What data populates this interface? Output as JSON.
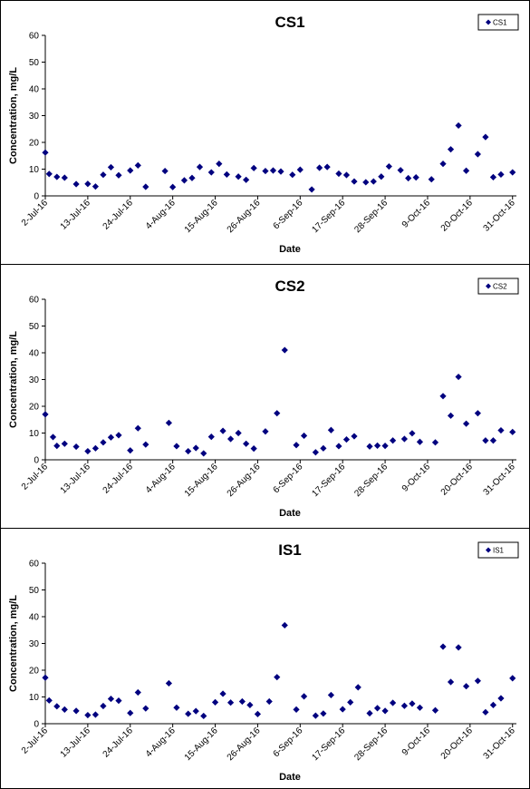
{
  "chart_data": [
    {
      "type": "scatter",
      "title": "CS1",
      "xlabel": "Date",
      "ylabel": "Concentration, mg/L",
      "ylim": [
        0,
        60
      ],
      "yticks": [
        "0",
        "10",
        "20",
        "30",
        "40",
        "50",
        "60"
      ],
      "xlim": [
        "2016-07-02",
        "2016-11-01"
      ],
      "xticks": [
        "2-Jul-16",
        "13-Jul-16",
        "24-Jul-16",
        "4-Aug-16",
        "15-Aug-16",
        "26-Aug-16",
        "6-Sep-16",
        "17-Sep-16",
        "28-Sep-16",
        "9-Oct-16",
        "20-Oct-16",
        "31-Oct-16"
      ],
      "grid": false,
      "legend_position": "top-right",
      "marker": "diamond",
      "color": "#00007f",
      "series": [
        {
          "name": "CS1",
          "points": [
            [
              "2016-07-02",
              16.2
            ],
            [
              "2016-07-03",
              8.2
            ],
            [
              "2016-07-05",
              7.1
            ],
            [
              "2016-07-07",
              6.8
            ],
            [
              "2016-07-10",
              4.4
            ],
            [
              "2016-07-13",
              4.5
            ],
            [
              "2016-07-15",
              3.5
            ],
            [
              "2016-07-17",
              7.9
            ],
            [
              "2016-07-19",
              10.7
            ],
            [
              "2016-07-21",
              7.7
            ],
            [
              "2016-07-24",
              9.5
            ],
            [
              "2016-07-26",
              11.4
            ],
            [
              "2016-07-28",
              3.4
            ],
            [
              "2016-08-02",
              9.3
            ],
            [
              "2016-08-04",
              3.3
            ],
            [
              "2016-08-07",
              5.8
            ],
            [
              "2016-08-09",
              6.7
            ],
            [
              "2016-08-11",
              10.8
            ],
            [
              "2016-08-14",
              8.8
            ],
            [
              "2016-08-16",
              12.0
            ],
            [
              "2016-08-18",
              8.0
            ],
            [
              "2016-08-21",
              7.2
            ],
            [
              "2016-08-23",
              6.0
            ],
            [
              "2016-08-25",
              10.4
            ],
            [
              "2016-08-28",
              9.3
            ],
            [
              "2016-08-30",
              9.5
            ],
            [
              "2016-09-01",
              9.1
            ],
            [
              "2016-09-04",
              7.9
            ],
            [
              "2016-09-06",
              9.8
            ],
            [
              "2016-09-09",
              2.4
            ],
            [
              "2016-09-11",
              10.5
            ],
            [
              "2016-09-13",
              10.8
            ],
            [
              "2016-09-16",
              8.3
            ],
            [
              "2016-09-18",
              7.8
            ],
            [
              "2016-09-20",
              5.4
            ],
            [
              "2016-09-23",
              5.1
            ],
            [
              "2016-09-25",
              5.4
            ],
            [
              "2016-09-27",
              7.2
            ],
            [
              "2016-09-29",
              11.0
            ],
            [
              "2016-10-02",
              9.6
            ],
            [
              "2016-10-04",
              6.6
            ],
            [
              "2016-10-06",
              6.9
            ],
            [
              "2016-10-10",
              6.2
            ],
            [
              "2016-10-13",
              12.0
            ],
            [
              "2016-10-15",
              17.4
            ],
            [
              "2016-10-17",
              26.3
            ],
            [
              "2016-10-19",
              9.4
            ],
            [
              "2016-10-22",
              15.6
            ],
            [
              "2016-10-24",
              22.0
            ],
            [
              "2016-10-26",
              7.0
            ],
            [
              "2016-10-28",
              8.0
            ],
            [
              "2016-10-31",
              8.8
            ]
          ]
        }
      ]
    },
    {
      "type": "scatter",
      "title": "CS2",
      "xlabel": "Date",
      "ylabel": "Concentration, mg/L",
      "ylim": [
        0,
        60
      ],
      "yticks": [
        "0",
        "10",
        "20",
        "30",
        "40",
        "50",
        "60"
      ],
      "xlim": [
        "2016-07-02",
        "2016-11-01"
      ],
      "xticks": [
        "2-Jul-16",
        "13-Jul-16",
        "24-Jul-16",
        "4-Aug-16",
        "15-Aug-16",
        "26-Aug-16",
        "6-Sep-16",
        "17-Sep-16",
        "28-Sep-16",
        "9-Oct-16",
        "20-Oct-16",
        "31-Oct-16"
      ],
      "grid": false,
      "legend_position": "top-right",
      "marker": "diamond",
      "color": "#00007f",
      "series": [
        {
          "name": "CS2",
          "points": [
            [
              "2016-07-02",
              17.0
            ],
            [
              "2016-07-04",
              8.5
            ],
            [
              "2016-07-05",
              5.2
            ],
            [
              "2016-07-07",
              6.0
            ],
            [
              "2016-07-10",
              4.9
            ],
            [
              "2016-07-13",
              3.2
            ],
            [
              "2016-07-15",
              4.3
            ],
            [
              "2016-07-17",
              6.5
            ],
            [
              "2016-07-19",
              8.4
            ],
            [
              "2016-07-21",
              9.2
            ],
            [
              "2016-07-24",
              3.5
            ],
            [
              "2016-07-26",
              11.8
            ],
            [
              "2016-07-28",
              5.7
            ],
            [
              "2016-08-03",
              13.8
            ],
            [
              "2016-08-05",
              5.1
            ],
            [
              "2016-08-08",
              3.2
            ],
            [
              "2016-08-10",
              4.4
            ],
            [
              "2016-08-12",
              2.4
            ],
            [
              "2016-08-14",
              8.6
            ],
            [
              "2016-08-17",
              10.8
            ],
            [
              "2016-08-19",
              7.8
            ],
            [
              "2016-08-21",
              10.0
            ],
            [
              "2016-08-23",
              6.0
            ],
            [
              "2016-08-25",
              4.2
            ],
            [
              "2016-08-28",
              10.6
            ],
            [
              "2016-08-31",
              17.4
            ],
            [
              "2016-09-02",
              41.0
            ],
            [
              "2016-09-05",
              5.5
            ],
            [
              "2016-09-07",
              9.0
            ],
            [
              "2016-09-10",
              2.8
            ],
            [
              "2016-09-12",
              4.3
            ],
            [
              "2016-09-14",
              11.1
            ],
            [
              "2016-09-16",
              5.1
            ],
            [
              "2016-09-18",
              7.6
            ],
            [
              "2016-09-20",
              8.8
            ],
            [
              "2016-09-24",
              5.0
            ],
            [
              "2016-09-26",
              5.3
            ],
            [
              "2016-09-28",
              5.2
            ],
            [
              "2016-09-30",
              7.2
            ],
            [
              "2016-10-03",
              7.8
            ],
            [
              "2016-10-05",
              9.9
            ],
            [
              "2016-10-07",
              6.7
            ],
            [
              "2016-10-11",
              6.5
            ],
            [
              "2016-10-13",
              23.8
            ],
            [
              "2016-10-15",
              16.5
            ],
            [
              "2016-10-17",
              31.0
            ],
            [
              "2016-10-19",
              13.5
            ],
            [
              "2016-10-22",
              17.4
            ],
            [
              "2016-10-24",
              7.2
            ],
            [
              "2016-10-26",
              7.2
            ],
            [
              "2016-10-28",
              11.0
            ],
            [
              "2016-10-31",
              10.4
            ]
          ]
        }
      ]
    },
    {
      "type": "scatter",
      "title": "IS1",
      "xlabel": "Date",
      "ylabel": "Concentration, mg/L",
      "ylim": [
        0,
        60
      ],
      "yticks": [
        "0",
        "10",
        "20",
        "30",
        "40",
        "50",
        "60"
      ],
      "xlim": [
        "2016-07-02",
        "2016-11-01"
      ],
      "xticks": [
        "2-Jul-16",
        "13-Jul-16",
        "24-Jul-16",
        "4-Aug-16",
        "15-Aug-16",
        "26-Aug-16",
        "6-Sep-16",
        "17-Sep-16",
        "28-Sep-16",
        "9-Oct-16",
        "20-Oct-16",
        "31-Oct-16"
      ],
      "grid": false,
      "legend_position": "top-right",
      "marker": "diamond",
      "color": "#00007f",
      "series": [
        {
          "name": "IS1",
          "points": [
            [
              "2016-07-02",
              17.2
            ],
            [
              "2016-07-03",
              8.7
            ],
            [
              "2016-07-05",
              6.5
            ],
            [
              "2016-07-07",
              5.3
            ],
            [
              "2016-07-10",
              4.8
            ],
            [
              "2016-07-13",
              3.2
            ],
            [
              "2016-07-15",
              3.4
            ],
            [
              "2016-07-17",
              6.6
            ],
            [
              "2016-07-19",
              9.3
            ],
            [
              "2016-07-21",
              8.6
            ],
            [
              "2016-07-24",
              4.0
            ],
            [
              "2016-07-26",
              11.7
            ],
            [
              "2016-07-28",
              5.7
            ],
            [
              "2016-08-03",
              15.1
            ],
            [
              "2016-08-05",
              6.0
            ],
            [
              "2016-08-08",
              3.7
            ],
            [
              "2016-08-10",
              4.7
            ],
            [
              "2016-08-12",
              2.9
            ],
            [
              "2016-08-15",
              8.0
            ],
            [
              "2016-08-17",
              11.2
            ],
            [
              "2016-08-19",
              7.9
            ],
            [
              "2016-08-22",
              8.3
            ],
            [
              "2016-08-24",
              7.0
            ],
            [
              "2016-08-26",
              3.6
            ],
            [
              "2016-08-29",
              8.3
            ],
            [
              "2016-08-31",
              17.4
            ],
            [
              "2016-09-02",
              36.8
            ],
            [
              "2016-09-05",
              5.3
            ],
            [
              "2016-09-07",
              10.2
            ],
            [
              "2016-09-10",
              3.0
            ],
            [
              "2016-09-12",
              3.8
            ],
            [
              "2016-09-14",
              10.7
            ],
            [
              "2016-09-17",
              5.4
            ],
            [
              "2016-09-19",
              8.0
            ],
            [
              "2016-09-21",
              13.6
            ],
            [
              "2016-09-24",
              3.9
            ],
            [
              "2016-09-26",
              5.8
            ],
            [
              "2016-09-28",
              4.8
            ],
            [
              "2016-09-30",
              7.8
            ],
            [
              "2016-10-03",
              6.7
            ],
            [
              "2016-10-05",
              7.5
            ],
            [
              "2016-10-07",
              6.0
            ],
            [
              "2016-10-11",
              5.0
            ],
            [
              "2016-10-13",
              28.8
            ],
            [
              "2016-10-15",
              15.6
            ],
            [
              "2016-10-17",
              28.5
            ],
            [
              "2016-10-19",
              14.0
            ],
            [
              "2016-10-22",
              16.0
            ],
            [
              "2016-10-24",
              4.3
            ],
            [
              "2016-10-26",
              7.0
            ],
            [
              "2016-10-28",
              9.5
            ],
            [
              "2016-10-31",
              17.0
            ]
          ]
        }
      ]
    }
  ]
}
